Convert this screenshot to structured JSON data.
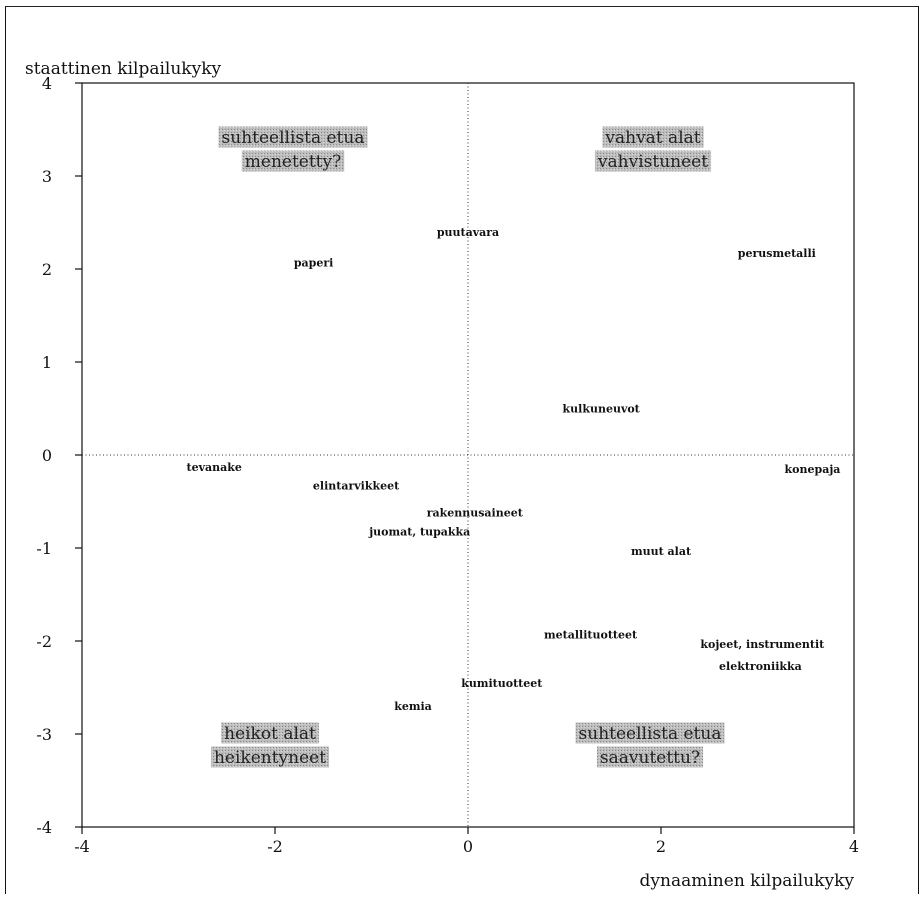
{
  "chart_data": {
    "type": "scatter",
    "xlabel": "dynaaminen kilpailukyky",
    "ylabel": "staattinen kilpailukyky",
    "xlim": [
      -4,
      4
    ],
    "ylim": [
      -4,
      4
    ],
    "xticks": [
      "-4",
      "-2",
      "0",
      "2",
      "4"
    ],
    "yticks": [
      "4",
      "3",
      "2",
      "1",
      "0",
      "-1",
      "-2",
      "-3",
      "-4"
    ],
    "grid": false,
    "reference_lines": [
      "x = 0",
      "y = 0"
    ],
    "points": [
      {
        "label": "puutavara",
        "x": 0.0,
        "y": 2.4
      },
      {
        "label": "paperi",
        "x": -1.6,
        "y": 2.07
      },
      {
        "label": "perusmetalli",
        "x": 3.2,
        "y": 2.17
      },
      {
        "label": "kulkuneuvot",
        "x": 1.38,
        "y": 0.5
      },
      {
        "label": "tevanake",
        "x": -2.63,
        "y": -0.13
      },
      {
        "label": "konepaja",
        "x": 3.57,
        "y": -0.15
      },
      {
        "label": "elintarvikkeet",
        "x": -1.16,
        "y": -0.33
      },
      {
        "label": "rakennusaineet",
        "x": 0.07,
        "y": -0.62
      },
      {
        "label": "juomat, tupakka",
        "x": -0.5,
        "y": -0.82
      },
      {
        "label": "muut alat",
        "x": 2.0,
        "y": -1.03
      },
      {
        "label": "metallituotteet",
        "x": 1.27,
        "y": -1.93
      },
      {
        "label": "kojeet, instrumentit",
        "x": 3.05,
        "y": -2.03
      },
      {
        "label": "elektroniikka",
        "x": 3.03,
        "y": -2.27
      },
      {
        "label": "kumituotteet",
        "x": 0.35,
        "y": -2.45
      },
      {
        "label": "kemia",
        "x": -0.57,
        "y": -2.7
      }
    ],
    "quadrant_labels": [
      {
        "lines": [
          "suhteellista etua",
          "menetetty?"
        ]
      },
      {
        "lines": [
          "vahvat alat",
          "vahvistuneet"
        ]
      },
      {
        "lines": [
          "heikot alat",
          "heikentyneet"
        ]
      },
      {
        "lines": [
          "suhteellista etua",
          "saavutettu?"
        ]
      }
    ]
  }
}
